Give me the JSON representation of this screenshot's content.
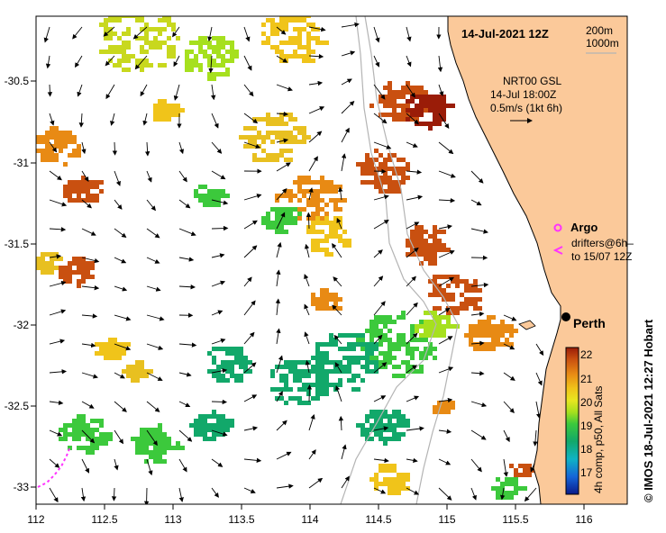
{
  "map": {
    "date_label": "14-Jul-2021 12Z",
    "depth_legend": [
      "200m",
      "1000m"
    ],
    "current_info": [
      "NRT00 GSL",
      "14-Jul 18:00Z",
      "0.5m/s (1kt 6h)"
    ],
    "argo_label": "Argo",
    "drifters_label": [
      "drifters@6h–",
      "to 15/07 12Z"
    ],
    "city": "Perth",
    "x_ticks": [
      "112",
      "112.5",
      "113",
      "113.5",
      "114",
      "114.5",
      "115",
      "115.5",
      "116"
    ],
    "y_ticks": [
      "-30.5",
      "-31",
      "-31.5",
      "-32",
      "-32.5",
      "-33"
    ],
    "colorbar": {
      "ticks": [
        "22",
        "21",
        "20",
        "19",
        "18",
        "17"
      ],
      "title": "4h comp, p50, All Sats"
    },
    "credit": "©  IMOS 18-Jul-2021 12:27 Hobart",
    "colors": {
      "land": "#fbc99a",
      "coast": "#000000",
      "isobath": "#b4b4b4",
      "argo": "#ff33ff",
      "drifter": "#ff33ff"
    }
  }
}
